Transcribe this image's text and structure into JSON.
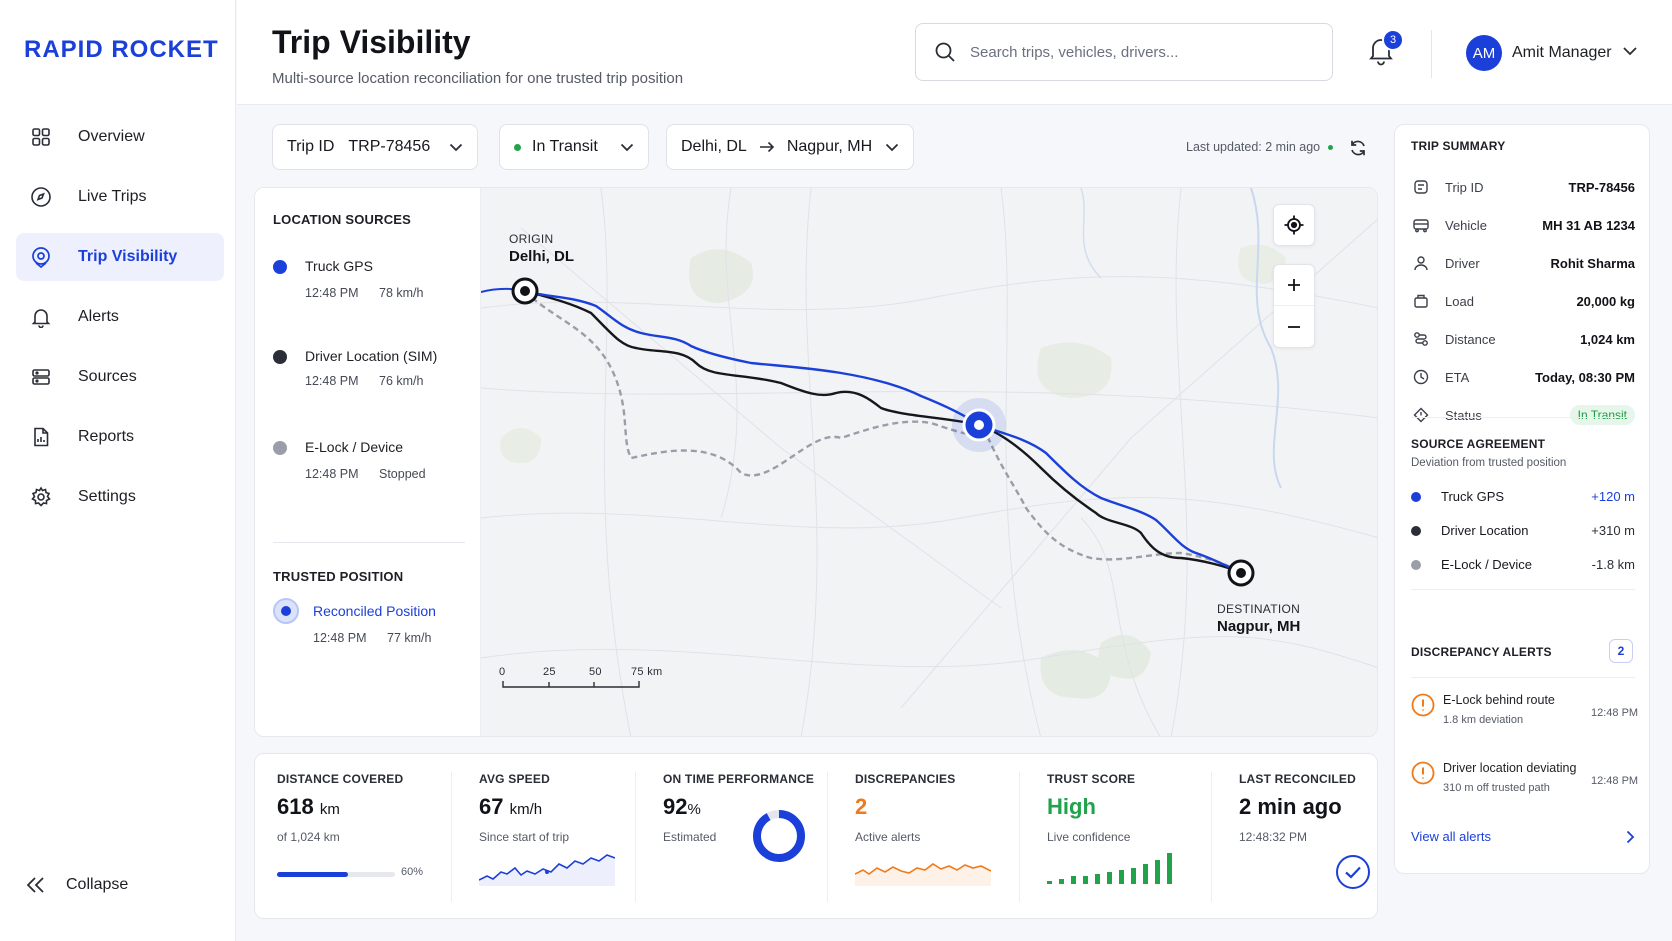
{
  "app": {
    "logo": "RAPID ROCKET"
  },
  "sidebar": {
    "items": [
      {
        "label": "Overview",
        "icon": "grid-icon"
      },
      {
        "label": "Live Trips",
        "icon": "compass-icon"
      },
      {
        "label": "Trip Visibility",
        "icon": "location-pin-icon",
        "active": true
      },
      {
        "label": "Alerts",
        "icon": "bell-icon"
      },
      {
        "label": "Sources",
        "icon": "router-icon"
      },
      {
        "label": "Reports",
        "icon": "report-icon"
      },
      {
        "label": "Settings",
        "icon": "gear-icon"
      }
    ],
    "collapse_label": "Collapse"
  },
  "header": {
    "title": "Trip Visibility",
    "subtitle": "Multi-source location reconciliation for one trusted trip position",
    "search_placeholder": "Search trips, vehicles, drivers...",
    "notification_count": "3",
    "user_initials": "AM",
    "user_name": "Amit Manager"
  },
  "filters": {
    "trip_label": "Trip ID",
    "trip_value": "TRP-78456",
    "status": "In Transit",
    "route_from": "Delhi, DL",
    "route_to": "Nagpur, MH",
    "last_updated": "Last updated: 2 min ago"
  },
  "location_sources": {
    "title": "LOCATION SOURCES",
    "items": [
      {
        "name": "Truck GPS",
        "time": "12:48 PM",
        "speed": "78 km/h",
        "color": "#1b3fd9"
      },
      {
        "name": "Driver Location (SIM)",
        "time": "12:48 PM",
        "speed": "76 km/h",
        "color": "#2b2e36"
      },
      {
        "name": "E-Lock / Device",
        "time": "12:48 PM",
        "speed": "Stopped",
        "color": "#9a9ea8"
      }
    ],
    "trusted_title": "TRUSTED POSITION",
    "trusted_name": "Reconciled Position",
    "trusted_time": "12:48 PM",
    "trusted_speed": "77 km/h"
  },
  "map": {
    "origin_label": "ORIGIN",
    "origin_city": "Delhi, DL",
    "destination_label": "DESTINATION",
    "destination_city": "Nagpur, MH",
    "scale": [
      "0",
      "25",
      "50",
      "75 km"
    ]
  },
  "stats": {
    "distance": {
      "label": "DISTANCE COVERED",
      "value": "618",
      "unit": "km",
      "sub": "of 1,024 km",
      "progress_text": "60%",
      "progress": 0.6
    },
    "speed": {
      "label": "AVG SPEED",
      "value": "67",
      "unit": "km/h",
      "sub": "Since start of trip"
    },
    "ontime": {
      "label": "ON TIME PERFORMANCE",
      "value": "92",
      "unit": "%",
      "sub": "Estimated",
      "fraction": 0.92
    },
    "discrepancies": {
      "label": "DISCREPANCIES",
      "value": "2",
      "sub": "Active alerts"
    },
    "trust": {
      "label": "TRUST SCORE",
      "value": "High",
      "sub": "Live confidence"
    },
    "reconciled": {
      "label": "LAST RECONCILED",
      "value": "2 min ago",
      "sub": "12:48:32 PM"
    }
  },
  "trip_summary": {
    "title": "TRIP SUMMARY",
    "rows": [
      {
        "label": "Trip ID",
        "value": "TRP-78456",
        "icon": "id-icon"
      },
      {
        "label": "Vehicle",
        "value": "MH 31 AB 1234",
        "icon": "truck-icon"
      },
      {
        "label": "Driver",
        "value": "Rohit Sharma",
        "icon": "user-icon"
      },
      {
        "label": "Load",
        "value": "20,000 kg",
        "icon": "package-icon"
      },
      {
        "label": "Distance",
        "value": "1,024 km",
        "icon": "route-icon"
      },
      {
        "label": "ETA",
        "value": "Today, 08:30 PM",
        "icon": "clock-icon"
      }
    ],
    "status_label": "Status",
    "status_value": "In Transit"
  },
  "source_agreement": {
    "title": "SOURCE AGREEMENT",
    "subtitle": "Deviation from trusted position",
    "rows": [
      {
        "name": "Truck GPS",
        "value": "+120 m",
        "color": "#1b3fd9",
        "value_color": "#1b3fd9"
      },
      {
        "name": "Driver Location",
        "value": "+310 m",
        "color": "#2b2e36",
        "value_color": "#2b2e36"
      },
      {
        "name": "E-Lock / Device",
        "value": "-1.8 km",
        "color": "#9a9ea8",
        "value_color": "#2b2e36"
      }
    ]
  },
  "discrepancy_alerts": {
    "title": "DISCREPANCY ALERTS",
    "count": "2",
    "items": [
      {
        "title": "E-Lock behind route",
        "detail": "1.8 km deviation",
        "time": "12:48 PM"
      },
      {
        "title": "Driver location deviating",
        "detail": "310 m off trusted path",
        "time": "12:48 PM"
      }
    ],
    "view_all": "View all alerts"
  }
}
